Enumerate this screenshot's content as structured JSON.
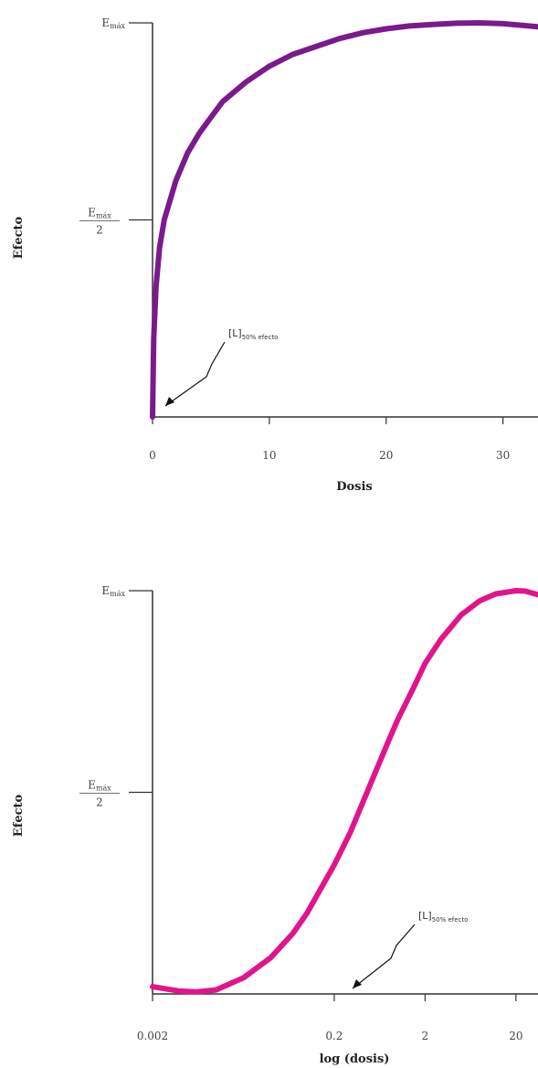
{
  "chart_data": [
    {
      "type": "line",
      "ylabel": "Efecto",
      "xlabel": "Dosis",
      "x_ticks": [
        "0",
        "10",
        "20",
        "30"
      ],
      "x_tick_values": [
        0,
        10,
        20,
        30
      ],
      "xlim": [
        0,
        33
      ],
      "y_ticks": [
        {
          "label": "E",
          "sub": "máx",
          "denominator": "",
          "value": 1.0
        },
        {
          "label": "E",
          "sub": "máx",
          "denominator": "2",
          "value": 0.5
        }
      ],
      "ylim": [
        0,
        1
      ],
      "series": [
        {
          "color": "#7a1a8c",
          "x": [
            0,
            0.1,
            0.3,
            0.6,
            1,
            2,
            3,
            4,
            5,
            6,
            8,
            10,
            12,
            14,
            16,
            18,
            20,
            22,
            24,
            26,
            28,
            30,
            33
          ],
          "y": [
            0,
            0.2,
            0.33,
            0.43,
            0.5,
            0.6,
            0.67,
            0.72,
            0.76,
            0.8,
            0.85,
            0.89,
            0.92,
            0.94,
            0.96,
            0.975,
            0.985,
            0.992,
            0.996,
            0.999,
            1.0,
            0.998,
            0.99
          ]
        }
      ],
      "annotation": {
        "text": "[L]",
        "sub": "50% efecto",
        "x": 1,
        "y": 0.02
      }
    },
    {
      "type": "line",
      "ylabel": "Efecto",
      "xlabel": "log (dosis)",
      "x_scale": "log",
      "x_ticks": [
        "0.002",
        "0.2",
        "2",
        "20"
      ],
      "x_tick_values": [
        0.002,
        0.2,
        2,
        20
      ],
      "xlim": [
        0.002,
        35
      ],
      "y_ticks": [
        {
          "label": "E",
          "sub": "máx",
          "denominator": "",
          "value": 1.0
        },
        {
          "label": "E",
          "sub": "máx",
          "denominator": "2",
          "value": 0.5
        }
      ],
      "ylim": [
        0,
        1
      ],
      "series": [
        {
          "color": "#e0158c",
          "x": [
            0.002,
            0.004,
            0.006,
            0.01,
            0.02,
            0.04,
            0.07,
            0.1,
            0.2,
            0.3,
            0.5,
            0.8,
            1,
            1.5,
            2,
            3,
            5,
            8,
            12,
            20,
            25,
            35
          ],
          "y": [
            0.018,
            0.007,
            0.005,
            0.01,
            0.04,
            0.09,
            0.15,
            0.2,
            0.32,
            0.4,
            0.52,
            0.63,
            0.68,
            0.76,
            0.82,
            0.88,
            0.94,
            0.975,
            0.992,
            1.0,
            0.999,
            0.99
          ]
        }
      ],
      "annotation": {
        "text": "[L]",
        "sub": "50% efecto",
        "x": 0.2,
        "y": 0.02
      }
    }
  ]
}
